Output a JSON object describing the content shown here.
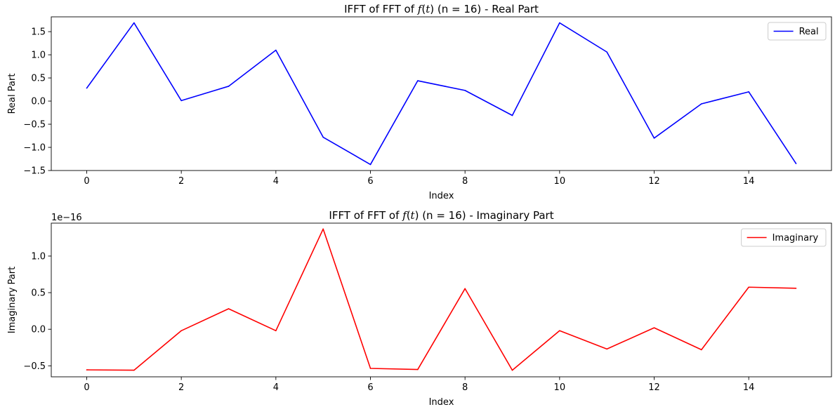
{
  "chart_data": [
    {
      "type": "line",
      "title_prefix": "IFFT of FFT of ",
      "title_func": "f",
      "title_var": "t",
      "title_suffix": " (n = 16) - Real Part",
      "xlabel": "Index",
      "ylabel": "Real Part",
      "xlim": [
        -0.75,
        15.75
      ],
      "ylim": [
        -1.5,
        1.82
      ],
      "xticks": [
        0,
        2,
        4,
        6,
        8,
        10,
        12,
        14
      ],
      "yticks": [
        -1.5,
        -1.0,
        -0.5,
        0.0,
        0.5,
        1.0,
        1.5
      ],
      "ytick_labels": [
        "−1.5",
        "−1.0",
        "−0.5",
        "0.0",
        "0.5",
        "1.0",
        "1.5"
      ],
      "offset_text": "",
      "legend_position": "top-right",
      "grid": false,
      "series": [
        {
          "name": "Real",
          "color": "#0000ff",
          "x": [
            0,
            1,
            2,
            3,
            4,
            5,
            6,
            7,
            8,
            9,
            10,
            11,
            12,
            13,
            14,
            15
          ],
          "values": [
            0.28,
            1.69,
            0.01,
            0.32,
            1.1,
            -0.78,
            -1.37,
            0.44,
            0.23,
            -0.31,
            1.69,
            1.06,
            -0.8,
            -0.06,
            0.2,
            -1.35
          ]
        }
      ]
    },
    {
      "type": "line",
      "title_prefix": "IFFT of FFT of ",
      "title_func": "f",
      "title_var": "t",
      "title_suffix": " (n = 16) - Imaginary Part",
      "xlabel": "Index",
      "ylabel": "Imaginary Part",
      "xlim": [
        -0.75,
        15.75
      ],
      "ylim": [
        -6.5e-17,
        1.45e-16
      ],
      "xticks": [
        0,
        2,
        4,
        6,
        8,
        10,
        12,
        14
      ],
      "yticks": [
        -5e-17,
        0.0,
        5e-17,
        1e-16
      ],
      "ytick_labels": [
        "−0.5",
        "0.0",
        "0.5",
        "1.0"
      ],
      "offset_text": "1e−16",
      "legend_position": "top-right",
      "grid": false,
      "series": [
        {
          "name": "Imaginary",
          "color": "#ff0000",
          "x": [
            0,
            1,
            2,
            3,
            4,
            5,
            6,
            7,
            8,
            9,
            10,
            11,
            12,
            13,
            14,
            15
          ],
          "values": [
            -5.55e-17,
            -5.6e-17,
            -2e-18,
            2.8e-17,
            -2e-18,
            1.37e-16,
            -5.35e-17,
            -5.5e-17,
            5.55e-17,
            -5.6e-17,
            -2e-18,
            -2.7e-17,
            2e-18,
            -2.8e-17,
            5.75e-17,
            5.6e-17
          ]
        }
      ]
    }
  ]
}
